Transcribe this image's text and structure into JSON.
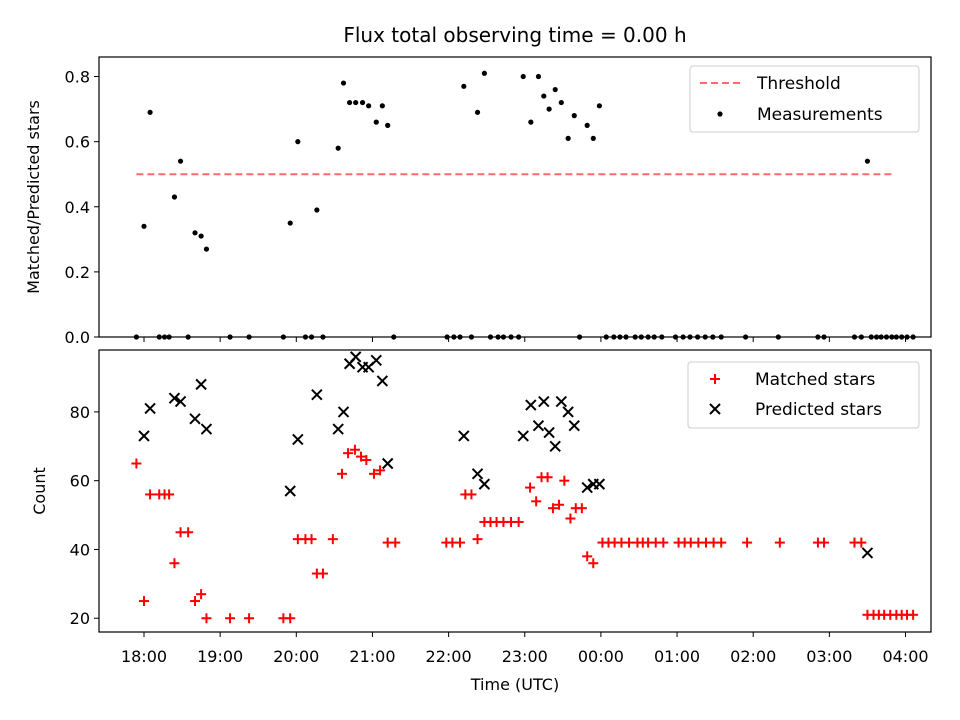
{
  "chart_data": [
    {
      "panel": "top",
      "type": "scatter",
      "title": "Flux total observing time = 0.00 h",
      "ylabel": "Matched/Predicted stars",
      "xlim": [
        -0.15,
        10.15
      ],
      "ylim": [
        0,
        0.86
      ],
      "y_ticks": [
        "0.0",
        "0.2",
        "0.4",
        "0.6",
        "0.8"
      ],
      "y_tick_values": [
        0,
        0.2,
        0.4,
        0.6,
        0.8
      ],
      "threshold": {
        "name": "Threshold",
        "value": 0.5,
        "x_range": [
          -0.1,
          9.83
        ],
        "color": "#ff6b6b"
      },
      "series": [
        {
          "name": "Measurements",
          "color": "#000000",
          "points": [
            [
              -0.1,
              0
            ],
            [
              0,
              0.34
            ],
            [
              0.08,
              0.69
            ],
            [
              0.2,
              0
            ],
            [
              0.27,
              0
            ],
            [
              0.33,
              0
            ],
            [
              0.4,
              0.43
            ],
            [
              0.48,
              0.54
            ],
            [
              0.58,
              0
            ],
            [
              0.67,
              0.32
            ],
            [
              0.75,
              0.31
            ],
            [
              0.82,
              0.27
            ],
            [
              1.13,
              0
            ],
            [
              1.38,
              0
            ],
            [
              1.83,
              0
            ],
            [
              1.92,
              0.35
            ],
            [
              2.02,
              0.6
            ],
            [
              2.12,
              0
            ],
            [
              2.2,
              0
            ],
            [
              2.27,
              0.39
            ],
            [
              2.35,
              0
            ],
            [
              2.55,
              0.58
            ],
            [
              2.62,
              0.78
            ],
            [
              2.7,
              0.72
            ],
            [
              2.78,
              0.72
            ],
            [
              2.87,
              0.72
            ],
            [
              2.95,
              0.71
            ],
            [
              3.05,
              0.66
            ],
            [
              3.13,
              0.71
            ],
            [
              3.2,
              0.65
            ],
            [
              3.28,
              0
            ],
            [
              3.98,
              0
            ],
            [
              4.07,
              0
            ],
            [
              4.15,
              0
            ],
            [
              4.2,
              0.77
            ],
            [
              4.3,
              0
            ],
            [
              4.38,
              0.69
            ],
            [
              4.47,
              0.81
            ],
            [
              4.55,
              0
            ],
            [
              4.65,
              0
            ],
            [
              4.72,
              0
            ],
            [
              4.82,
              0
            ],
            [
              4.92,
              0
            ],
            [
              4.98,
              0.8
            ],
            [
              5.08,
              0.66
            ],
            [
              5.18,
              0.8
            ],
            [
              5.25,
              0.74
            ],
            [
              5.32,
              0.7
            ],
            [
              5.4,
              0.76
            ],
            [
              5.48,
              0.72
            ],
            [
              5.57,
              0.61
            ],
            [
              5.65,
              0.68
            ],
            [
              5.72,
              0
            ],
            [
              5.82,
              0.65
            ],
            [
              5.9,
              0.61
            ],
            [
              5.98,
              0.71
            ],
            [
              6.07,
              0
            ],
            [
              6.17,
              0
            ],
            [
              6.25,
              0
            ],
            [
              6.33,
              0
            ],
            [
              6.45,
              0
            ],
            [
              6.53,
              0
            ],
            [
              6.62,
              0
            ],
            [
              6.7,
              0
            ],
            [
              6.8,
              0
            ],
            [
              6.98,
              0
            ],
            [
              7.08,
              0
            ],
            [
              7.17,
              0
            ],
            [
              7.27,
              0
            ],
            [
              7.37,
              0
            ],
            [
              7.47,
              0
            ],
            [
              7.58,
              0
            ],
            [
              7.9,
              0
            ],
            [
              8.33,
              0
            ],
            [
              8.85,
              0
            ],
            [
              8.93,
              0
            ],
            [
              9.33,
              0
            ],
            [
              9.42,
              0
            ],
            [
              9.5,
              0.54
            ],
            [
              9.55,
              0
            ],
            [
              9.62,
              0
            ],
            [
              9.68,
              0
            ],
            [
              9.75,
              0
            ],
            [
              9.82,
              0
            ],
            [
              9.88,
              0
            ],
            [
              9.95,
              0
            ],
            [
              10.02,
              0
            ],
            [
              10.1,
              0
            ]
          ]
        }
      ],
      "legend": {
        "position": "top-right",
        "entries": [
          "Threshold",
          "Measurements"
        ]
      }
    },
    {
      "panel": "bottom",
      "type": "scatter",
      "ylabel": "Count",
      "xlabel": "Time (UTC)",
      "xlim": [
        -0.15,
        10.15
      ],
      "ylim": [
        16,
        98
      ],
      "y_ticks": [
        "20",
        "40",
        "60",
        "80"
      ],
      "y_tick_values": [
        20,
        40,
        60,
        80
      ],
      "x_ticks": [
        "18:00",
        "19:00",
        "20:00",
        "21:00",
        "22:00",
        "23:00",
        "00:00",
        "01:00",
        "02:00",
        "03:00",
        "04:00"
      ],
      "x_tick_values": [
        0,
        1,
        2,
        3,
        4,
        5,
        6,
        7,
        8,
        9,
        10
      ],
      "series": [
        {
          "name": "Matched stars",
          "marker": "+",
          "color": "#ff0000",
          "points": [
            [
              -0.1,
              65
            ],
            [
              0,
              25
            ],
            [
              0.08,
              56
            ],
            [
              0.2,
              56
            ],
            [
              0.27,
              56
            ],
            [
              0.33,
              56
            ],
            [
              0.4,
              36
            ],
            [
              0.48,
              45
            ],
            [
              0.58,
              45
            ],
            [
              0.67,
              25
            ],
            [
              0.75,
              27
            ],
            [
              0.82,
              20
            ],
            [
              1.13,
              20
            ],
            [
              1.38,
              20
            ],
            [
              1.83,
              20
            ],
            [
              1.92,
              20
            ],
            [
              2.02,
              43
            ],
            [
              2.12,
              43
            ],
            [
              2.2,
              43
            ],
            [
              2.27,
              33
            ],
            [
              2.35,
              33
            ],
            [
              2.48,
              43
            ],
            [
              2.6,
              62
            ],
            [
              2.68,
              68
            ],
            [
              2.77,
              69
            ],
            [
              2.85,
              67
            ],
            [
              2.92,
              66
            ],
            [
              3.02,
              62
            ],
            [
              3.1,
              63
            ],
            [
              3.2,
              42
            ],
            [
              3.3,
              42
            ],
            [
              3.97,
              42
            ],
            [
              4.05,
              42
            ],
            [
              4.15,
              42
            ],
            [
              4.22,
              56
            ],
            [
              4.3,
              56
            ],
            [
              4.38,
              43
            ],
            [
              4.47,
              48
            ],
            [
              4.55,
              48
            ],
            [
              4.63,
              48
            ],
            [
              4.72,
              48
            ],
            [
              4.82,
              48
            ],
            [
              4.92,
              48
            ],
            [
              5.07,
              58
            ],
            [
              5.15,
              54
            ],
            [
              5.22,
              61
            ],
            [
              5.3,
              61
            ],
            [
              5.37,
              52
            ],
            [
              5.45,
              53
            ],
            [
              5.52,
              60
            ],
            [
              5.6,
              49
            ],
            [
              5.67,
              52
            ],
            [
              5.75,
              52
            ],
            [
              5.82,
              38
            ],
            [
              5.9,
              36
            ],
            [
              6.02,
              42
            ],
            [
              6.1,
              42
            ],
            [
              6.18,
              42
            ],
            [
              6.27,
              42
            ],
            [
              6.37,
              42
            ],
            [
              6.48,
              42
            ],
            [
              6.55,
              42
            ],
            [
              6.62,
              42
            ],
            [
              6.72,
              42
            ],
            [
              6.82,
              42
            ],
            [
              7.02,
              42
            ],
            [
              7.1,
              42
            ],
            [
              7.18,
              42
            ],
            [
              7.28,
              42
            ],
            [
              7.38,
              42
            ],
            [
              7.48,
              42
            ],
            [
              7.58,
              42
            ],
            [
              7.92,
              42
            ],
            [
              8.35,
              42
            ],
            [
              8.85,
              42
            ],
            [
              8.93,
              42
            ],
            [
              9.33,
              42
            ],
            [
              9.42,
              42
            ],
            [
              9.5,
              21
            ],
            [
              9.58,
              21
            ],
            [
              9.65,
              21
            ],
            [
              9.72,
              21
            ],
            [
              9.8,
              21
            ],
            [
              9.88,
              21
            ],
            [
              9.95,
              21
            ],
            [
              10.02,
              21
            ],
            [
              10.1,
              21
            ]
          ]
        },
        {
          "name": "Predicted stars",
          "marker": "x",
          "color": "#000000",
          "points": [
            [
              0,
              73
            ],
            [
              0.08,
              81
            ],
            [
              0.4,
              84
            ],
            [
              0.48,
              83
            ],
            [
              0.67,
              78
            ],
            [
              0.75,
              88
            ],
            [
              0.82,
              75
            ],
            [
              1.92,
              57
            ],
            [
              2.02,
              72
            ],
            [
              2.27,
              85
            ],
            [
              2.55,
              75
            ],
            [
              2.62,
              80
            ],
            [
              2.7,
              94
            ],
            [
              2.78,
              96
            ],
            [
              2.87,
              93
            ],
            [
              2.95,
              93
            ],
            [
              3.05,
              95
            ],
            [
              3.13,
              89
            ],
            [
              3.2,
              65
            ],
            [
              4.2,
              73
            ],
            [
              4.38,
              62
            ],
            [
              4.47,
              59
            ],
            [
              4.98,
              73
            ],
            [
              5.08,
              82
            ],
            [
              5.18,
              76
            ],
            [
              5.25,
              83
            ],
            [
              5.32,
              74
            ],
            [
              5.4,
              70
            ],
            [
              5.48,
              83
            ],
            [
              5.57,
              80
            ],
            [
              5.65,
              76
            ],
            [
              5.82,
              58
            ],
            [
              5.9,
              59
            ],
            [
              5.98,
              59
            ],
            [
              9.5,
              39
            ]
          ]
        }
      ],
      "legend": {
        "position": "top-right",
        "entries": [
          "Matched stars",
          "Predicted stars"
        ]
      }
    }
  ]
}
